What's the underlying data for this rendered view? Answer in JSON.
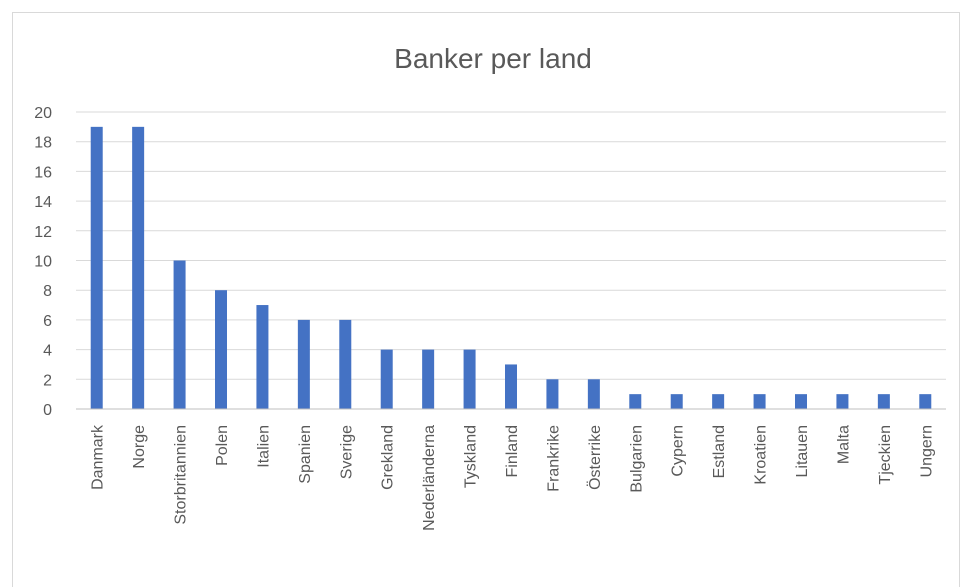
{
  "chart_data": {
    "type": "bar",
    "title": "Banker per land",
    "xlabel": "",
    "ylabel": "",
    "categories": [
      "Danmark",
      "Norge",
      "Storbritannien",
      "Polen",
      "Italien",
      "Spanien",
      "Sverige",
      "Grekland",
      "Nederländerna",
      "Tyskland",
      "Finland",
      "Frankrike",
      "Österrike",
      "Bulgarien",
      "Cypern",
      "Estland",
      "Kroatien",
      "Litauen",
      "Malta",
      "Tjeckien",
      "Ungern"
    ],
    "values": [
      19,
      19,
      10,
      8,
      7,
      6,
      6,
      4,
      4,
      4,
      3,
      2,
      2,
      1,
      1,
      1,
      1,
      1,
      1,
      1,
      1
    ],
    "ylim": [
      0,
      20
    ],
    "yticks": [
      0,
      2,
      4,
      6,
      8,
      10,
      12,
      14,
      16,
      18,
      20
    ],
    "grid": true,
    "legend": "none",
    "bar_color": "#4472c4"
  }
}
